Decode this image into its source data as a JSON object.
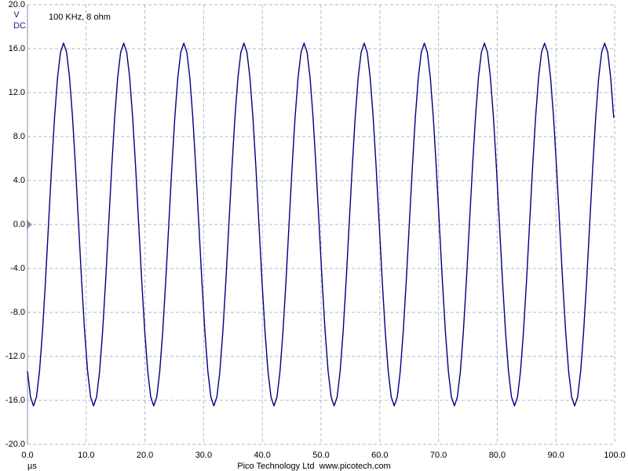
{
  "chart_data": {
    "type": "line",
    "annotation": "100 KHz, 8 ohm",
    "y_unit": "V",
    "coupling": "DC",
    "x_label": "µs",
    "footer": "Pico Technology Ltd  www.picotech.com",
    "color": "#000080",
    "grid": true,
    "xlim": [
      0,
      100
    ],
    "ylim": [
      -20,
      20
    ],
    "xticks": [
      {
        "value": 0,
        "label": "0.0"
      },
      {
        "value": 10,
        "label": "10.0"
      },
      {
        "value": 20,
        "label": "20.0"
      },
      {
        "value": 30,
        "label": "30.0"
      },
      {
        "value": 40,
        "label": "40.0"
      },
      {
        "value": 50,
        "label": "50.0"
      },
      {
        "value": 60,
        "label": "60.0"
      },
      {
        "value": 70,
        "label": "70.0"
      },
      {
        "value": 80,
        "label": "80.0"
      },
      {
        "value": 90,
        "label": "90.0"
      },
      {
        "value": 100,
        "label": "100.0"
      }
    ],
    "yticks": [
      {
        "value": 20,
        "label": "20.0"
      },
      {
        "value": 16,
        "label": "16.0"
      },
      {
        "value": 12,
        "label": "12.0"
      },
      {
        "value": 8,
        "label": "8.0"
      },
      {
        "value": 4,
        "label": "4.0"
      },
      {
        "value": 0,
        "label": "0.0"
      },
      {
        "value": -4,
        "label": "-4.0"
      },
      {
        "value": -8,
        "label": "-8.0"
      },
      {
        "value": -12,
        "label": "-12.0"
      },
      {
        "value": -16,
        "label": "-16.0"
      },
      {
        "value": -20,
        "label": "-20.0"
      }
    ],
    "x": [
      0,
      0.512,
      1.024,
      1.536,
      2.048,
      2.56,
      3.072,
      3.584,
      4.096,
      4.608,
      5.12,
      5.632,
      6.144,
      6.656,
      7.168,
      7.68,
      8.192,
      8.704,
      9.216,
      9.728,
      10.24,
      10.752,
      11.264,
      11.776,
      12.288,
      12.8,
      13.312,
      13.824,
      14.336,
      14.848,
      15.36,
      15.872,
      16.384,
      16.896,
      17.408,
      17.92,
      18.432,
      18.944,
      19.456,
      19.968,
      20.48,
      20.992,
      21.504,
      22.016,
      22.528,
      23.04,
      23.552,
      24.064,
      24.576,
      25.088,
      25.6,
      26.112,
      26.624,
      27.136,
      27.648,
      28.16,
      28.672,
      29.184,
      29.696,
      30.208,
      30.72,
      31.232,
      31.744,
      32.256,
      32.768,
      33.28,
      33.792,
      34.304,
      34.816,
      35.328,
      35.84,
      36.352,
      36.864,
      37.376,
      37.888,
      38.4,
      38.912,
      39.424,
      39.936,
      40.448,
      40.96,
      41.472,
      41.984,
      42.496,
      43.008,
      43.52,
      44.032,
      44.544,
      45.056,
      45.568,
      46.08,
      46.592,
      47.104,
      47.616,
      48.128,
      48.64,
      49.152,
      49.664,
      50.176,
      50.688,
      51.2,
      51.712,
      52.224,
      52.736,
      53.248,
      53.76,
      54.272,
      54.784,
      55.296,
      55.808,
      56.32,
      56.832,
      57.344,
      57.856,
      58.368,
      58.88,
      59.392,
      59.904,
      60.416,
      60.928,
      61.44,
      61.952,
      62.464,
      62.976,
      63.488,
      64,
      64.512,
      65.024,
      65.536,
      66.048,
      66.56,
      67.072,
      67.584,
      68.096,
      68.608,
      69.12,
      69.632,
      70.144,
      70.656,
      71.168,
      71.68,
      72.192,
      72.704,
      73.216,
      73.728,
      74.24,
      74.752,
      75.264,
      75.776,
      76.288,
      76.8,
      77.312,
      77.824,
      78.336,
      78.848,
      79.36,
      79.872,
      80.384,
      80.896,
      81.408,
      81.92,
      82.432,
      82.944,
      83.456,
      83.968,
      84.48,
      84.992,
      85.504,
      86.016,
      86.528,
      87.04,
      87.552,
      88.064,
      88.576,
      89.088,
      89.6,
      90.112,
      90.624,
      91.136,
      91.648,
      92.16,
      92.672,
      93.184,
      93.696,
      94.208,
      94.72,
      95.232,
      95.744,
      96.256,
      96.768,
      97.28,
      97.792,
      98.304,
      98.816,
      99.328,
      99.84
    ],
    "values": [
      -13.35,
      -15.69,
      -16.5,
      -15.69,
      -13.35,
      -9.7,
      -5.1,
      0,
      5.1,
      9.7,
      13.35,
      15.69,
      16.5,
      15.69,
      13.35,
      9.7,
      5.1,
      0,
      -5.1,
      -9.7,
      -13.35,
      -15.69,
      -16.5,
      -15.69,
      -13.35,
      -9.7,
      -5.1,
      0,
      5.1,
      9.7,
      13.35,
      15.69,
      16.5,
      15.69,
      13.35,
      9.7,
      5.1,
      0,
      -5.1,
      -9.7,
      -13.35,
      -15.69,
      -16.5,
      -15.69,
      -13.35,
      -9.7,
      -5.1,
      0,
      5.1,
      9.7,
      13.35,
      15.69,
      16.5,
      15.69,
      13.35,
      9.7,
      5.1,
      0,
      -5.1,
      -9.7,
      -13.35,
      -15.69,
      -16.5,
      -15.69,
      -13.35,
      -9.7,
      -5.1,
      0,
      5.1,
      9.7,
      13.35,
      15.69,
      16.5,
      15.69,
      13.35,
      9.7,
      5.1,
      0,
      -5.1,
      -9.7,
      -13.35,
      -15.69,
      -16.5,
      -15.69,
      -13.35,
      -9.7,
      -5.1,
      0,
      5.1,
      9.7,
      13.35,
      15.69,
      16.5,
      15.69,
      13.35,
      9.7,
      5.1,
      0,
      -5.1,
      -9.7,
      -13.35,
      -15.69,
      -16.5,
      -15.69,
      -13.35,
      -9.7,
      -5.1,
      0,
      5.1,
      9.7,
      13.35,
      15.69,
      16.5,
      15.69,
      13.35,
      9.7,
      5.1,
      0,
      -5.1,
      -9.7,
      -13.35,
      -15.69,
      -16.5,
      -15.69,
      -13.35,
      -9.7,
      -5.1,
      0,
      5.1,
      9.7,
      13.35,
      15.69,
      16.5,
      15.69,
      13.35,
      9.7,
      5.1,
      0,
      -5.1,
      -9.7,
      -13.35,
      -15.69,
      -16.5,
      -15.69,
      -13.35,
      -9.7,
      -5.1,
      0,
      5.1,
      9.7,
      13.35,
      15.69,
      16.5,
      15.69,
      13.35,
      9.7,
      5.1,
      0,
      -5.1,
      -9.7,
      -13.35,
      -15.69,
      -16.5,
      -15.69,
      -13.35,
      -9.7,
      -5.1,
      0,
      5.1,
      9.7,
      13.35,
      15.69,
      16.5,
      15.69,
      13.35,
      9.7,
      5.1,
      0,
      -5.1,
      -9.7,
      -13.35,
      -15.69,
      -16.5,
      -15.69,
      -13.35,
      -9.7,
      -5.1,
      0,
      5.1,
      9.7,
      13.35,
      15.69,
      16.5,
      15.69,
      13.35,
      9.7
    ]
  }
}
